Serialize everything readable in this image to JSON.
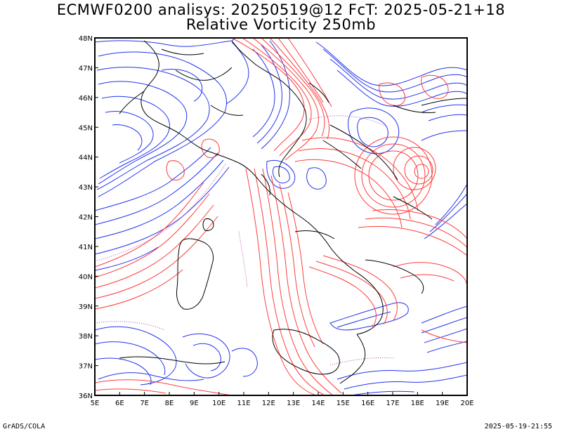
{
  "header": {
    "title_line1": "ECMWF0200 analisys: 20250519@12 FcT: 2025-05-21+18",
    "title_line2": "Relative Vorticity 250mb"
  },
  "map": {
    "lon_labels": [
      "5E",
      "6E",
      "7E",
      "8E",
      "9E",
      "10E",
      "11E",
      "12E",
      "13E",
      "14E",
      "15E",
      "16E",
      "17E",
      "18E",
      "19E",
      "20E"
    ],
    "lat_labels": [
      "36N",
      "37N",
      "38N",
      "39N",
      "40N",
      "41N",
      "42N",
      "43N",
      "44N",
      "45N",
      "46N",
      "47N",
      "48N"
    ],
    "colors": {
      "positive_vorticity": "#ff3b3b",
      "negative_vorticity": "#2233ee",
      "zero_contour": "#b04ab0",
      "coastline": "#000000",
      "frame": "#000000"
    }
  },
  "footer": {
    "left": "GrADS/COLA",
    "right": "2025-05-19-21:55"
  }
}
